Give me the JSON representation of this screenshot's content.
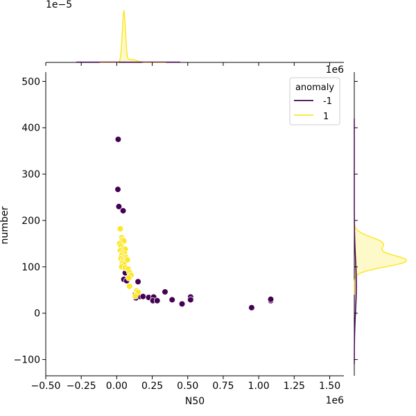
{
  "chart_data": {
    "type": "scatter",
    "subtype": "jointplot",
    "xlabel": "N50",
    "ylabel": "number",
    "x_offset_label": "1e6",
    "y_marginal_offset_label": "1e6",
    "top_marginal_offset_label": "1e−5",
    "xlim": [
      -0.5,
      1.6
    ],
    "ylim": [
      -135,
      520
    ],
    "x_ticks": [
      -0.5,
      -0.25,
      0.0,
      0.25,
      0.5,
      0.75,
      1.0,
      1.25,
      1.5
    ],
    "x_tick_labels": [
      "−0.50",
      "−0.25",
      "0.00",
      "0.25",
      "0.50",
      "0.75",
      "1.00",
      "1.25",
      "1.50"
    ],
    "y_ticks": [
      -100,
      0,
      100,
      200,
      300,
      400,
      500
    ],
    "y_tick_labels": [
      "−100",
      "0",
      "100",
      "200",
      "300",
      "400",
      "500"
    ],
    "grid": false,
    "legend": {
      "title": "anomaly",
      "placement": "top-right",
      "entries": [
        {
          "label": "-1",
          "color": "#440154"
        },
        {
          "label": "1",
          "color": "#fde725"
        }
      ]
    },
    "series": [
      {
        "name": "-1",
        "color": "#440154",
        "points": [
          [
            0.01,
            375
          ],
          [
            0.008,
            267
          ],
          [
            0.015,
            230
          ],
          [
            0.045,
            221
          ],
          [
            0.06,
            87
          ],
          [
            0.05,
            73
          ],
          [
            0.07,
            70
          ],
          [
            0.08,
            96
          ],
          [
            0.15,
            68
          ],
          [
            0.13,
            40
          ],
          [
            0.135,
            33
          ],
          [
            0.165,
            36
          ],
          [
            0.185,
            36
          ],
          [
            0.225,
            34
          ],
          [
            0.26,
            35
          ],
          [
            0.255,
            27
          ],
          [
            0.285,
            27
          ],
          [
            0.34,
            46
          ],
          [
            0.39,
            29
          ],
          [
            0.46,
            20
          ],
          [
            0.52,
            35
          ],
          [
            0.52,
            29
          ],
          [
            0.95,
            12
          ],
          [
            1.085,
            27
          ],
          [
            1.085,
            30
          ]
        ]
      },
      {
        "name": "1",
        "color": "#fde725",
        "points": [
          [
            0.025,
            182
          ],
          [
            0.035,
            163
          ],
          [
            0.04,
            158
          ],
          [
            0.05,
            156
          ],
          [
            0.02,
            150
          ],
          [
            0.03,
            145
          ],
          [
            0.045,
            140
          ],
          [
            0.06,
            138
          ],
          [
            0.025,
            135
          ],
          [
            0.04,
            130
          ],
          [
            0.055,
            128
          ],
          [
            0.035,
            125
          ],
          [
            0.05,
            122
          ],
          [
            0.065,
            120
          ],
          [
            0.03,
            118
          ],
          [
            0.045,
            115
          ],
          [
            0.06,
            112
          ],
          [
            0.075,
            115
          ],
          [
            0.04,
            108
          ],
          [
            0.05,
            105
          ],
          [
            0.035,
            100
          ],
          [
            0.06,
            98
          ],
          [
            0.08,
            95
          ],
          [
            0.09,
            88
          ],
          [
            0.1,
            82
          ],
          [
            0.085,
            76
          ],
          [
            0.09,
            58
          ],
          [
            0.14,
            48
          ],
          [
            0.15,
            45
          ],
          [
            0.13,
            37
          ]
        ]
      }
    ],
    "marginal_top": {
      "type": "kde",
      "series": [
        {
          "name": "1",
          "peak_x": 0.05,
          "note_peak_density": 5.5
        }
      ]
    },
    "marginal_right": {
      "type": "kde",
      "series": [
        {
          "name": "1",
          "peak_y": 113
        },
        {
          "name": "-1",
          "peak_y": 60
        }
      ]
    }
  }
}
